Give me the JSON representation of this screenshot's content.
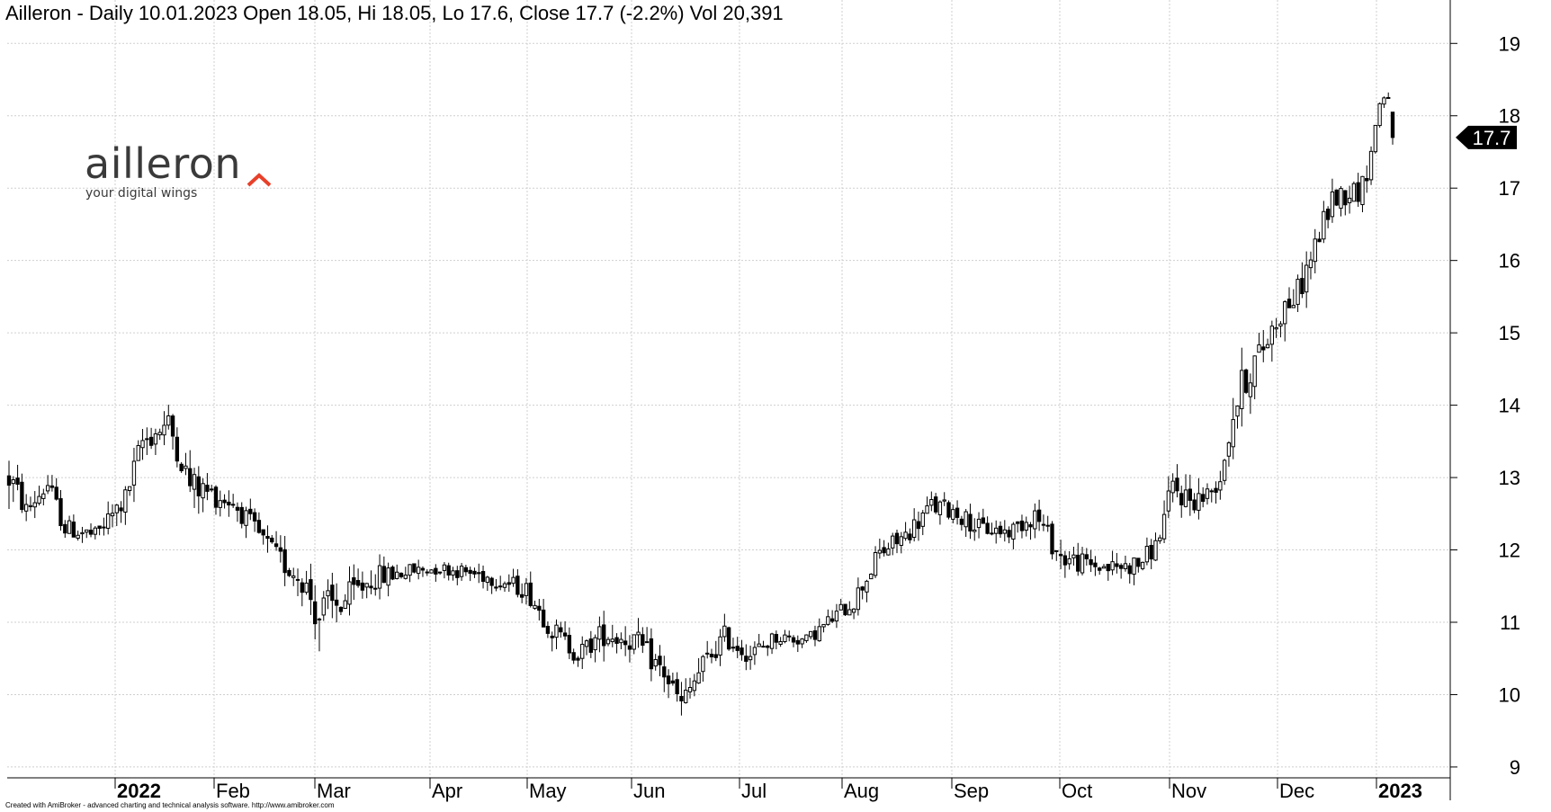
{
  "header": {
    "title": "Ailleron - Daily 10.01.2023 Open 18.05, Hi 18.05, Lo 17.6, Close 17.7 (-2.2%) Vol 20,391"
  },
  "logo": {
    "name": "ailleron",
    "tagline": "your digital wings",
    "accent_color": "#e8402a"
  },
  "footer": {
    "credit": "Created with AmiBroker - advanced charting and technical analysis software. http://www.amibroker.com"
  },
  "last_price_label": "17.7",
  "chart_data": {
    "type": "candlestick",
    "title": "Ailleron - Daily 10.01.2023 Open 18.05, Hi 18.05, Lo 17.6, Close 17.7 (-2.2%) Vol 20,391",
    "ylim": [
      8.85,
      19.6
    ],
    "y_ticks": [
      9,
      10,
      11,
      12,
      13,
      14,
      15,
      16,
      17,
      18,
      19
    ],
    "x_tick_labels": [
      "2022",
      "Feb",
      "Mar",
      "Apr",
      "May",
      "Jun",
      "Jul",
      "Aug",
      "Sep",
      "Oct",
      "Nov",
      "Dec",
      "2023"
    ],
    "x_tick_bold": [
      true,
      false,
      false,
      false,
      false,
      false,
      false,
      false,
      false,
      false,
      false,
      false,
      true
    ],
    "grid": true,
    "up_color": "#ffffff",
    "down_color": "#000000",
    "last_close": 17.7,
    "anchors": [
      {
        "i": 0,
        "p": 13.0,
        "v": 0.6
      },
      {
        "i": 4,
        "p": 12.55,
        "v": 0.3
      },
      {
        "i": 9,
        "p": 12.9,
        "v": 0.35
      },
      {
        "i": 13,
        "p": 12.3,
        "v": 0.3
      },
      {
        "i": 20,
        "p": 12.2,
        "v": 0.25
      },
      {
        "i": 27,
        "p": 12.7,
        "v": 0.4
      },
      {
        "i": 31,
        "p": 13.5,
        "v": 0.45
      },
      {
        "i": 37,
        "p": 13.75,
        "v": 0.35
      },
      {
        "i": 42,
        "p": 12.9,
        "v": 0.5
      },
      {
        "i": 52,
        "p": 12.65,
        "v": 0.3
      },
      {
        "i": 62,
        "p": 11.9,
        "v": 0.4
      },
      {
        "i": 68,
        "p": 11.6,
        "v": 0.45
      },
      {
        "i": 72,
        "p": 11.1,
        "v": 0.8
      },
      {
        "i": 78,
        "p": 11.3,
        "v": 0.5
      },
      {
        "i": 84,
        "p": 11.6,
        "v": 0.4
      },
      {
        "i": 92,
        "p": 11.7,
        "v": 0.25
      },
      {
        "i": 100,
        "p": 11.75,
        "v": 0.2
      },
      {
        "i": 110,
        "p": 11.65,
        "v": 0.25
      },
      {
        "i": 120,
        "p": 11.45,
        "v": 0.3
      },
      {
        "i": 126,
        "p": 10.9,
        "v": 0.35
      },
      {
        "i": 132,
        "p": 10.55,
        "v": 0.3
      },
      {
        "i": 138,
        "p": 10.85,
        "v": 0.4
      },
      {
        "i": 145,
        "p": 10.75,
        "v": 0.4
      },
      {
        "i": 152,
        "p": 10.3,
        "v": 0.4
      },
      {
        "i": 156,
        "p": 9.85,
        "v": 0.4
      },
      {
        "i": 161,
        "p": 10.4,
        "v": 0.4
      },
      {
        "i": 166,
        "p": 10.8,
        "v": 0.35
      },
      {
        "i": 172,
        "p": 10.55,
        "v": 0.3
      },
      {
        "i": 178,
        "p": 10.8,
        "v": 0.25
      },
      {
        "i": 185,
        "p": 10.75,
        "v": 0.2
      },
      {
        "i": 190,
        "p": 11.0,
        "v": 0.25
      },
      {
        "i": 196,
        "p": 11.3,
        "v": 0.3
      },
      {
        "i": 202,
        "p": 11.95,
        "v": 0.35
      },
      {
        "i": 208,
        "p": 12.2,
        "v": 0.3
      },
      {
        "i": 214,
        "p": 12.6,
        "v": 0.35
      },
      {
        "i": 219,
        "p": 12.55,
        "v": 0.3
      },
      {
        "i": 225,
        "p": 12.3,
        "v": 0.3
      },
      {
        "i": 232,
        "p": 12.25,
        "v": 0.25
      },
      {
        "i": 238,
        "p": 12.5,
        "v": 0.35
      },
      {
        "i": 244,
        "p": 11.9,
        "v": 0.4
      },
      {
        "i": 250,
        "p": 11.8,
        "v": 0.3
      },
      {
        "i": 256,
        "p": 11.75,
        "v": 0.3
      },
      {
        "i": 262,
        "p": 11.8,
        "v": 0.3
      },
      {
        "i": 266,
        "p": 12.05,
        "v": 0.3
      },
      {
        "i": 270,
        "p": 12.85,
        "v": 0.45
      },
      {
        "i": 274,
        "p": 12.7,
        "v": 0.45
      },
      {
        "i": 278,
        "p": 12.75,
        "v": 0.35
      },
      {
        "i": 281,
        "p": 13.0,
        "v": 0.3
      },
      {
        "i": 284,
        "p": 13.9,
        "v": 0.6
      },
      {
        "i": 287,
        "p": 14.4,
        "v": 0.6
      },
      {
        "i": 291,
        "p": 14.8,
        "v": 0.45
      },
      {
        "i": 295,
        "p": 15.3,
        "v": 0.5
      },
      {
        "i": 299,
        "p": 15.55,
        "v": 0.45
      },
      {
        "i": 303,
        "p": 16.2,
        "v": 0.4
      },
      {
        "i": 307,
        "p": 16.85,
        "v": 0.4
      },
      {
        "i": 311,
        "p": 16.95,
        "v": 0.35
      },
      {
        "i": 314,
        "p": 17.0,
        "v": 0.4
      },
      {
        "i": 316,
        "p": 17.5,
        "v": 0.3
      },
      {
        "i": 318,
        "p": 18.2,
        "v": 0.25
      },
      {
        "i": 320,
        "p": 18.3,
        "v": 0.15
      }
    ],
    "final_bar": {
      "open": 18.05,
      "high": 18.05,
      "low": 17.6,
      "close": 17.7
    }
  }
}
